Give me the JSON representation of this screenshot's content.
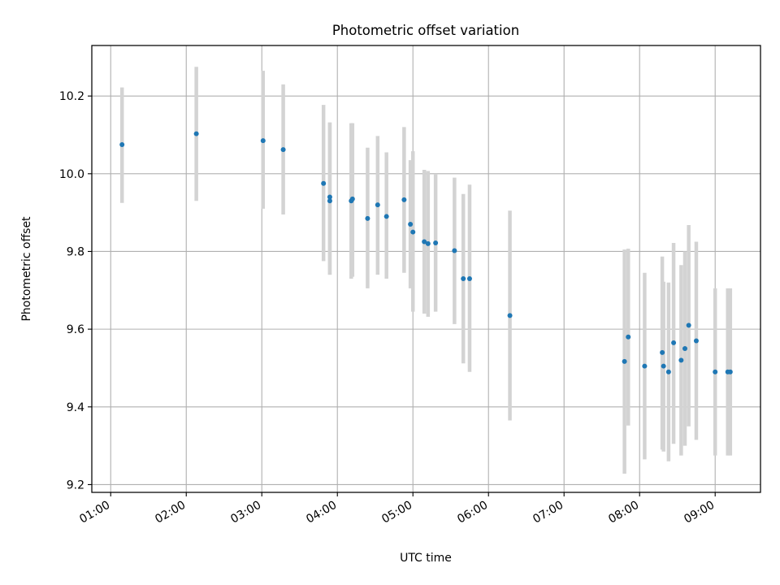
{
  "chart_data": {
    "type": "scatter",
    "title": "Photometric offset variation",
    "xlabel": "UTC time",
    "ylabel": "Photometric offset",
    "x_unit": "hours UTC",
    "xlim": [
      "00:45",
      "09:36"
    ],
    "ylim": [
      9.18,
      10.33
    ],
    "x_ticks": [
      "01:00",
      "02:00",
      "03:00",
      "04:00",
      "05:00",
      "06:00",
      "07:00",
      "08:00",
      "09:00"
    ],
    "y_ticks": [
      "9.2",
      "9.4",
      "9.6",
      "9.8",
      "10.0",
      "10.2"
    ],
    "grid": true,
    "colors": {
      "points": "#1f77b4",
      "errorbars": "#d3d3d3",
      "grid": "#b0b0b0"
    },
    "points": [
      {
        "x": "01:09",
        "y": 10.075,
        "lo": 9.925,
        "hi": 10.222
      },
      {
        "x": "02:08",
        "y": 10.103,
        "lo": 9.93,
        "hi": 10.275
      },
      {
        "x": "03:01",
        "y": 10.085,
        "lo": 9.91,
        "hi": 10.265
      },
      {
        "x": "03:17",
        "y": 10.062,
        "lo": 9.895,
        "hi": 10.23
      },
      {
        "x": "03:49",
        "y": 9.975,
        "lo": 9.775,
        "hi": 10.177
      },
      {
        "x": "03:54",
        "y": 9.94,
        "lo": 9.74,
        "hi": 10.132
      },
      {
        "x": "03:54",
        "y": 9.93,
        "lo": 9.74,
        "hi": 10.132
      },
      {
        "x": "04:11",
        "y": 9.93,
        "lo": 9.73,
        "hi": 10.13
      },
      {
        "x": "04:12",
        "y": 9.935,
        "lo": 9.735,
        "hi": 10.13
      },
      {
        "x": "04:24",
        "y": 9.885,
        "lo": 9.705,
        "hi": 10.067
      },
      {
        "x": "04:32",
        "y": 9.92,
        "lo": 9.74,
        "hi": 10.097
      },
      {
        "x": "04:39",
        "y": 9.89,
        "lo": 9.73,
        "hi": 10.055
      },
      {
        "x": "04:53",
        "y": 9.933,
        "lo": 9.745,
        "hi": 10.12
      },
      {
        "x": "04:58",
        "y": 9.87,
        "lo": 9.705,
        "hi": 10.035
      },
      {
        "x": "05:00",
        "y": 9.85,
        "lo": 9.645,
        "hi": 10.058
      },
      {
        "x": "05:09",
        "y": 9.825,
        "lo": 9.64,
        "hi": 10.01
      },
      {
        "x": "05:12",
        "y": 9.82,
        "lo": 9.632,
        "hi": 10.007
      },
      {
        "x": "05:18",
        "y": 9.822,
        "lo": 9.645,
        "hi": 10.0
      },
      {
        "x": "05:33",
        "y": 9.802,
        "lo": 9.613,
        "hi": 9.99
      },
      {
        "x": "05:40",
        "y": 9.73,
        "lo": 9.512,
        "hi": 9.948
      },
      {
        "x": "05:45",
        "y": 9.73,
        "lo": 9.49,
        "hi": 9.972
      },
      {
        "x": "06:17",
        "y": 9.635,
        "lo": 9.365,
        "hi": 9.905
      },
      {
        "x": "07:48",
        "y": 9.517,
        "lo": 9.228,
        "hi": 9.805
      },
      {
        "x": "07:51",
        "y": 9.58,
        "lo": 9.352,
        "hi": 9.807
      },
      {
        "x": "08:04",
        "y": 9.505,
        "lo": 9.265,
        "hi": 9.745
      },
      {
        "x": "08:18",
        "y": 9.54,
        "lo": 9.29,
        "hi": 9.787
      },
      {
        "x": "08:19",
        "y": 9.505,
        "lo": 9.285,
        "hi": 9.722
      },
      {
        "x": "08:23",
        "y": 9.49,
        "lo": 9.26,
        "hi": 9.72
      },
      {
        "x": "08:27",
        "y": 9.565,
        "lo": 9.305,
        "hi": 9.822
      },
      {
        "x": "08:33",
        "y": 9.52,
        "lo": 9.275,
        "hi": 9.765
      },
      {
        "x": "08:36",
        "y": 9.55,
        "lo": 9.3,
        "hi": 9.8
      },
      {
        "x": "08:39",
        "y": 9.61,
        "lo": 9.35,
        "hi": 9.868
      },
      {
        "x": "08:45",
        "y": 9.57,
        "lo": 9.315,
        "hi": 9.825
      },
      {
        "x": "09:00",
        "y": 9.49,
        "lo": 9.275,
        "hi": 9.705
      },
      {
        "x": "09:10",
        "y": 9.49,
        "lo": 9.275,
        "hi": 9.705
      },
      {
        "x": "09:12",
        "y": 9.49,
        "lo": 9.275,
        "hi": 9.705
      }
    ]
  }
}
